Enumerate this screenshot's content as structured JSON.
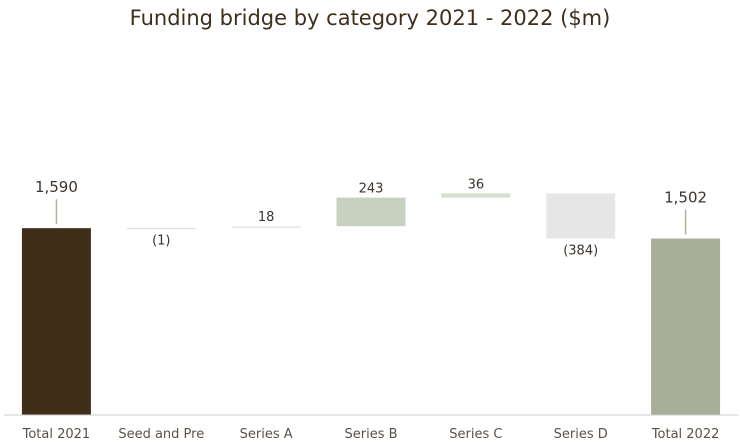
{
  "chart_data": {
    "type": "waterfall",
    "title": "Funding bridge by category 2021 - 2022 ($m)",
    "categories": [
      "Total 2021",
      "Seed and Pre",
      "Series A",
      "Series B",
      "Series C",
      "Series D",
      "Total 2022"
    ],
    "values": [
      1590,
      -1,
      18,
      243,
      36,
      -384,
      1502
    ],
    "kinds": [
      "total",
      "delta",
      "delta",
      "delta",
      "delta",
      "delta",
      "total"
    ],
    "data_labels": [
      "1,590",
      "(1)",
      "18",
      "243",
      "36",
      "(384)",
      "1,502"
    ],
    "colors": [
      "#3f2e18",
      "#d9d9d9",
      "#ececec",
      "#c8d1c0",
      "#d5e1cc",
      "#e6e6e6",
      "#a9b09a"
    ],
    "grid": false,
    "legend": "none"
  }
}
